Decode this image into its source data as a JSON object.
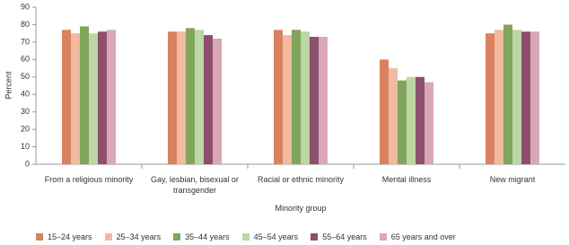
{
  "chart_data": {
    "type": "bar",
    "y_label": "Percent",
    "x_label": "Minority group",
    "categories": [
      "From a religious minority",
      "Gay, lesbian, bisexual or transgender",
      "Racial or ethnic minority",
      "Mental illness",
      "New migrant"
    ],
    "series": [
      {
        "name": "15–24 years",
        "color": "#d9825f",
        "values": [
          77,
          76,
          77,
          60,
          75
        ]
      },
      {
        "name": "25–34 years",
        "color": "#f0b9a0",
        "values": [
          75,
          76,
          74,
          55,
          77
        ]
      },
      {
        "name": "35–44 years",
        "color": "#7fa65a",
        "values": [
          79,
          78,
          77,
          48,
          80
        ]
      },
      {
        "name": "45–54 years",
        "color": "#bcd6a4",
        "values": [
          75,
          77,
          76,
          50,
          77
        ]
      },
      {
        "name": "55–64 years",
        "color": "#8c4f6e",
        "values": [
          76,
          74,
          73,
          50,
          76
        ]
      },
      {
        "name": "65 years and over",
        "color": "#d9a7b5",
        "values": [
          77,
          72,
          73,
          47,
          76
        ]
      }
    ],
    "ylim": [
      0,
      90
    ],
    "yticks": [
      0,
      10,
      20,
      30,
      40,
      50,
      60,
      70,
      80,
      90
    ],
    "grid": false
  }
}
